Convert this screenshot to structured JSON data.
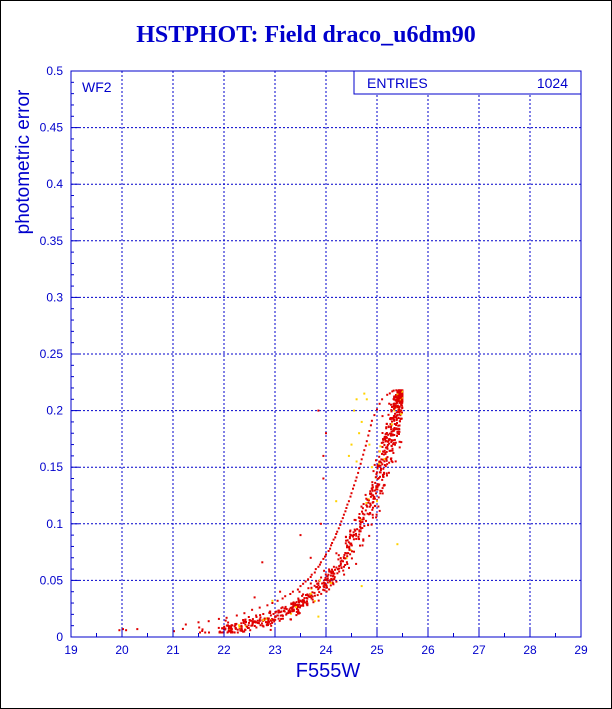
{
  "page": {
    "title": "HSTPHOT: Field draco_u6dm90"
  },
  "stats_box": {
    "label": "ENTRIES",
    "value": "1024"
  },
  "panel_label": "WF2",
  "colors": {
    "axes": "#0000cc",
    "grid": "#0000cc",
    "points_main": "#e00000",
    "points_flagged": "#ffd200"
  },
  "chart_data": {
    "type": "scatter",
    "title": "HSTPHOT: Field draco_u6dm90",
    "xlabel": "F555W",
    "ylabel": "photometric error",
    "xlim": [
      19,
      29
    ],
    "ylim": [
      0,
      0.5
    ],
    "xticks": [
      "19",
      "20",
      "21",
      "22",
      "23",
      "24",
      "25",
      "26",
      "27",
      "28",
      "29"
    ],
    "yticks": [
      "0",
      "0.05",
      "0.1",
      "0.15",
      "0.2",
      "0.25",
      "0.3",
      "0.35",
      "0.4",
      "0.45",
      "0.5"
    ],
    "grid": true,
    "entries": 1024,
    "relation": "error ≈ 0.215·exp(1.02·(mag − 25.45)) with scatter, faint limit ≈ 25.5",
    "series": [
      {
        "color": "#e00000",
        "points": [
          [
            19.95,
            0.006
          ],
          [
            20.02,
            0.007
          ],
          [
            20.08,
            0.006
          ],
          [
            20.3,
            0.007
          ],
          [
            21.25,
            0.011
          ],
          [
            21.5,
            0.013
          ],
          [
            21.7,
            0.014
          ],
          [
            21.9,
            0.016
          ],
          [
            22.05,
            0.017
          ],
          [
            22.25,
            0.019
          ],
          [
            22.4,
            0.021
          ],
          [
            22.55,
            0.024
          ],
          [
            22.7,
            0.026
          ],
          [
            22.75,
            0.066
          ],
          [
            22.85,
            0.028
          ],
          [
            22.95,
            0.03
          ],
          [
            23.05,
            0.032
          ],
          [
            23.15,
            0.034
          ],
          [
            23.2,
            0.036
          ],
          [
            23.3,
            0.038
          ],
          [
            23.35,
            0.04
          ],
          [
            23.45,
            0.042
          ],
          [
            23.5,
            0.045
          ],
          [
            23.55,
            0.047
          ],
          [
            23.6,
            0.049
          ],
          [
            23.65,
            0.051
          ],
          [
            23.7,
            0.053
          ],
          [
            23.72,
            0.055
          ],
          [
            23.78,
            0.057
          ],
          [
            23.8,
            0.06
          ],
          [
            23.85,
            0.062
          ],
          [
            23.88,
            0.064
          ],
          [
            23.9,
            0.066
          ],
          [
            23.95,
            0.069
          ],
          [
            23.98,
            0.071
          ],
          [
            24.0,
            0.073
          ],
          [
            24.05,
            0.076
          ],
          [
            24.08,
            0.078
          ],
          [
            24.1,
            0.081
          ],
          [
            24.12,
            0.083
          ],
          [
            24.15,
            0.086
          ],
          [
            24.18,
            0.088
          ],
          [
            24.2,
            0.091
          ],
          [
            24.22,
            0.093
          ],
          [
            24.25,
            0.096
          ],
          [
            24.28,
            0.099
          ],
          [
            24.3,
            0.102
          ],
          [
            24.33,
            0.105
          ],
          [
            24.35,
            0.108
          ],
          [
            24.38,
            0.111
          ],
          [
            24.4,
            0.114
          ],
          [
            24.42,
            0.117
          ],
          [
            24.45,
            0.12
          ],
          [
            24.48,
            0.124
          ],
          [
            24.5,
            0.127
          ],
          [
            24.53,
            0.131
          ],
          [
            24.55,
            0.134
          ],
          [
            24.58,
            0.138
          ],
          [
            24.6,
            0.141
          ],
          [
            24.63,
            0.145
          ],
          [
            24.65,
            0.149
          ],
          [
            24.68,
            0.153
          ],
          [
            24.7,
            0.157
          ],
          [
            24.73,
            0.161
          ],
          [
            24.75,
            0.165
          ],
          [
            24.78,
            0.169
          ],
          [
            24.8,
            0.173
          ],
          [
            24.83,
            0.178
          ],
          [
            24.85,
            0.182
          ],
          [
            24.88,
            0.187
          ],
          [
            24.9,
            0.191
          ],
          [
            24.95,
            0.196
          ],
          [
            25.0,
            0.201
          ],
          [
            25.05,
            0.206
          ],
          [
            25.1,
            0.21
          ],
          [
            25.2,
            0.214
          ],
          [
            25.3,
            0.217
          ],
          [
            25.4,
            0.216
          ],
          [
            23.85,
            0.2
          ],
          [
            23.95,
            0.16
          ],
          [
            23.9,
            0.1
          ],
          [
            23.5,
            0.09
          ],
          [
            23.95,
            0.14
          ],
          [
            24.0,
            0.18
          ],
          [
            23.1,
            0.04
          ],
          [
            22.6,
            0.035
          ],
          [
            23.7,
            0.07
          ]
        ]
      },
      {
        "color": "#ffd200",
        "points": [
          [
            24.6,
            0.21
          ],
          [
            24.7,
            0.19
          ],
          [
            24.5,
            0.17
          ],
          [
            24.55,
            0.2
          ],
          [
            24.75,
            0.215
          ],
          [
            24.65,
            0.18
          ],
          [
            24.85,
            0.17
          ],
          [
            24.9,
            0.15
          ],
          [
            24.45,
            0.16
          ],
          [
            24.8,
            0.21
          ],
          [
            25.4,
            0.082
          ],
          [
            24.7,
            0.045
          ],
          [
            23.85,
            0.018
          ],
          [
            22.95,
            0.032
          ],
          [
            24.2,
            0.12
          ],
          [
            25.0,
            0.12
          ],
          [
            24.6,
            0.155
          ]
        ]
      }
    ]
  }
}
